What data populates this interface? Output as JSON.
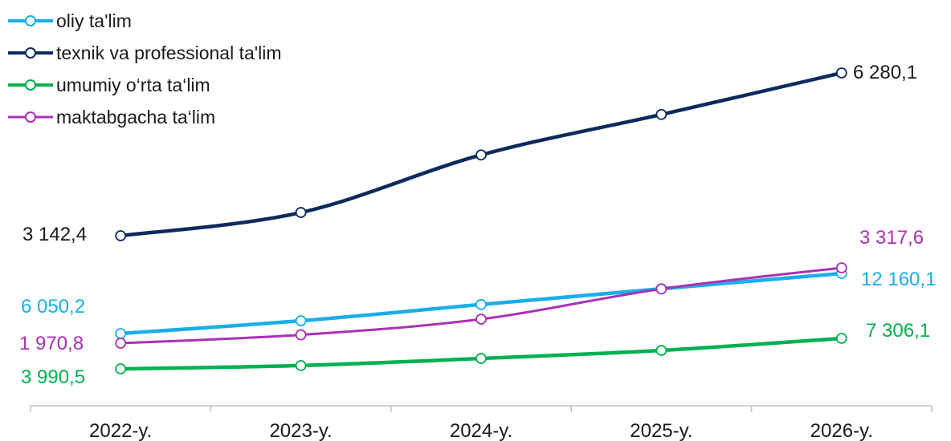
{
  "chart_data": {
    "type": "line",
    "categories": [
      "2022-y.",
      "2023-y.",
      "2024-y.",
      "2025-y.",
      "2026-y."
    ],
    "series": [
      {
        "name": "oliy ta'lim",
        "color": "#1aaee8",
        "values": [
          6050.2,
          7350,
          9000,
          10600,
          12160.1
        ],
        "labels": [
          "6 050,2",
          "",
          "",
          "",
          "12 160,1"
        ]
      },
      {
        "name": "texnik va professional ta'lim",
        "color": "#0d2a5c",
        "values": [
          3142.4,
          3590,
          4700,
          5480,
          6280.1
        ],
        "labels": [
          "3 142,4",
          "",
          "",
          "",
          "6 280,1"
        ]
      },
      {
        "name": "umumiy o‘rta ta‘lim",
        "color": "#00b050",
        "values": [
          3990.5,
          4350,
          5120,
          6000,
          7306.1
        ],
        "labels": [
          "3 990,5",
          "",
          "",
          "",
          "7 306,1"
        ]
      },
      {
        "name": "maktabgacha ta‘lim",
        "color": "#a832b4",
        "values": [
          1970.8,
          2120,
          2400,
          2940,
          3317.6
        ],
        "labels": [
          "1 970,8",
          "",
          "",
          "",
          "3 317,6"
        ]
      }
    ],
    "legend_position": "top-left",
    "grid": false
  }
}
